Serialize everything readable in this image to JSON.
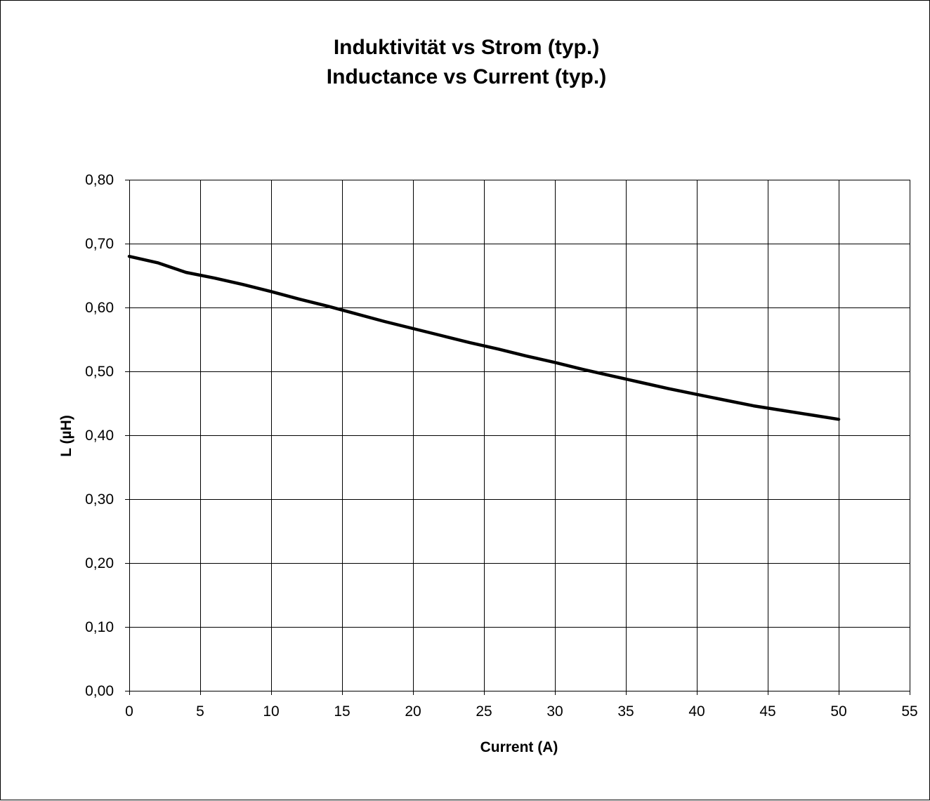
{
  "chart_data": {
    "type": "line",
    "title": "Induktivität vs Strom (typ.)",
    "subtitle": "Inductance vs Current (typ.)",
    "xlabel": "Current (A)",
    "ylabel": "L (µH)",
    "xlim": [
      0,
      55
    ],
    "ylim": [
      0,
      0.8
    ],
    "x_ticks": [
      0,
      5,
      10,
      15,
      20,
      25,
      30,
      35,
      40,
      45,
      50,
      55
    ],
    "x_tick_labels": [
      "0",
      "5",
      "10",
      "15",
      "20",
      "25",
      "30",
      "35",
      "40",
      "45",
      "50",
      "55"
    ],
    "y_ticks": [
      0,
      0.1,
      0.2,
      0.3,
      0.4,
      0.5,
      0.6,
      0.7,
      0.8
    ],
    "y_tick_labels": [
      "0,00",
      "0,10",
      "0,20",
      "0,30",
      "0,40",
      "0,50",
      "0,60",
      "0,70",
      "0,80"
    ],
    "grid": true,
    "legend": "none",
    "line_color": "#000000",
    "series": [
      {
        "x": [
          0,
          2,
          4,
          6,
          8,
          10,
          12,
          14,
          16,
          18,
          20,
          22,
          24,
          26,
          28,
          30,
          32,
          34,
          36,
          38,
          40,
          42,
          44,
          46,
          48,
          50
        ],
        "values": [
          0.68,
          0.67,
          0.655,
          0.646,
          0.636,
          0.625,
          0.613,
          0.602,
          0.59,
          0.578,
          0.567,
          0.556,
          0.545,
          0.535,
          0.524,
          0.514,
          0.503,
          0.493,
          0.483,
          0.473,
          0.464,
          0.455,
          0.446,
          0.439,
          0.432,
          0.425
        ]
      }
    ]
  }
}
